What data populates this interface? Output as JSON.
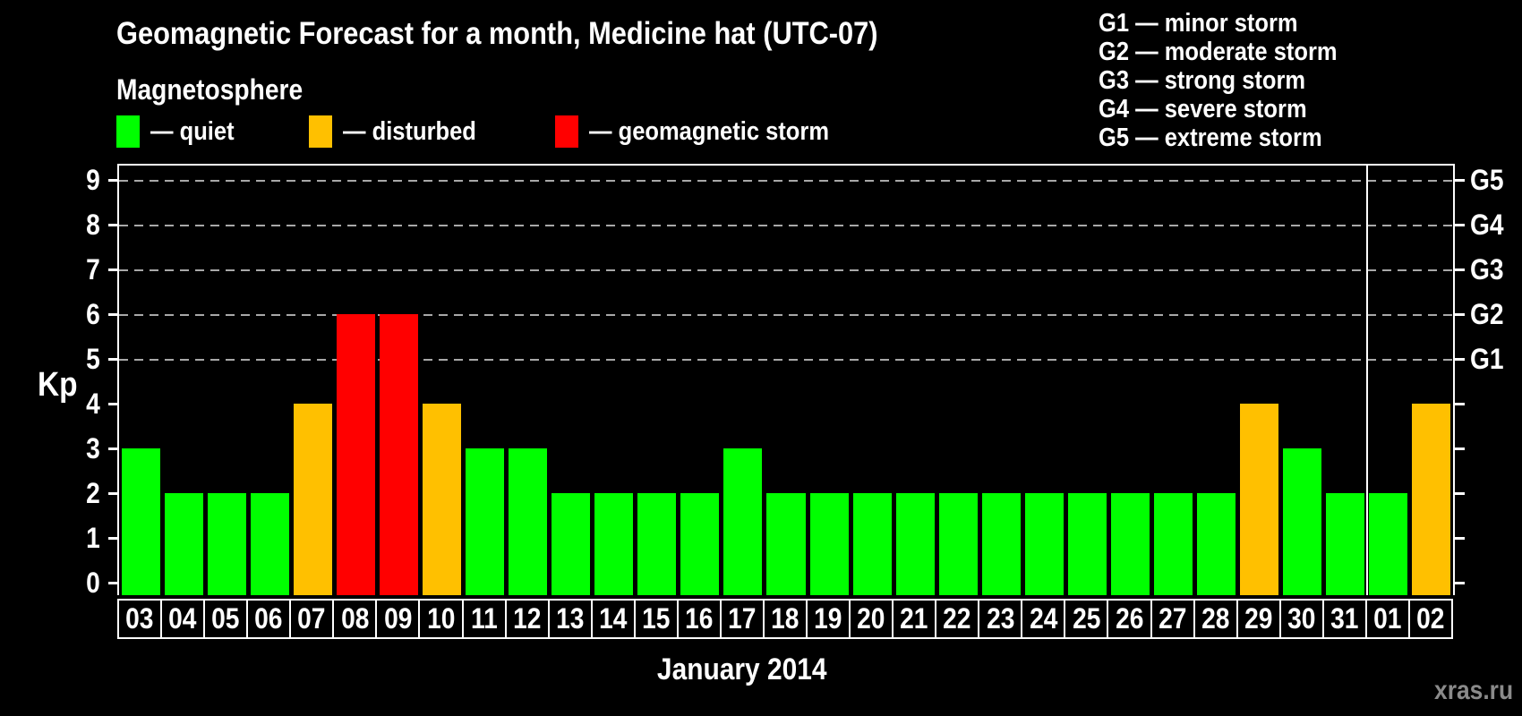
{
  "title": "Geomagnetic Forecast for a month, Medicine hat (UTC-07)",
  "subtitle": "Magnetosphere",
  "watermark": "xras.ru",
  "magnetosphere_legend": [
    {
      "key": "quiet",
      "label": "— quiet",
      "color": "#00ff00"
    },
    {
      "key": "disturbed",
      "label": "— disturbed",
      "color": "#ffc000"
    },
    {
      "key": "storm",
      "label": "— geomagnetic storm",
      "color": "#ff0000"
    }
  ],
  "storm_scale_legend": [
    "G1 — minor storm",
    "G2 — moderate storm",
    "G3 — strong storm",
    "G4 — severe storm",
    "G5 — extreme storm"
  ],
  "chart_data": {
    "type": "bar",
    "title": "Geomagnetic Forecast for a month, Medicine hat (UTC-07)",
    "subtitle": "Magnetosphere",
    "xlabel": "January 2014",
    "ylabel": "Kp",
    "ylim": [
      0,
      9
    ],
    "yticks": [
      0,
      1,
      2,
      3,
      4,
      5,
      6,
      7,
      8,
      9
    ],
    "gridlines_at_kp": [
      5,
      6,
      7,
      8,
      9
    ],
    "grid_style": "dashed horizontal lines at Kp 5-9",
    "legend_position": "top-left",
    "right_axis_labels": [
      {
        "label": "G1",
        "kp": 5
      },
      {
        "label": "G2",
        "kp": 6
      },
      {
        "label": "G3",
        "kp": 7
      },
      {
        "label": "G4",
        "kp": 8
      },
      {
        "label": "G5",
        "kp": 9
      }
    ],
    "categories": [
      "03",
      "04",
      "05",
      "06",
      "07",
      "08",
      "09",
      "10",
      "11",
      "12",
      "13",
      "14",
      "15",
      "16",
      "17",
      "18",
      "19",
      "20",
      "21",
      "22",
      "23",
      "24",
      "25",
      "26",
      "27",
      "28",
      "29",
      "30",
      "31",
      "01",
      "02"
    ],
    "values": [
      3,
      2,
      2,
      2,
      4,
      6,
      6,
      4,
      3,
      3,
      2,
      2,
      2,
      2,
      3,
      2,
      2,
      2,
      2,
      2,
      2,
      2,
      2,
      2,
      2,
      2,
      4,
      3,
      2,
      2,
      4
    ],
    "bar_colors": {
      "quiet": "#00ff00",
      "disturbed": "#ffc000",
      "storm": "#ff0000"
    },
    "color_rule": {
      "disturbed_min_kp": 4,
      "storm_min_kp": 6
    },
    "month_separator_after_category": "31"
  }
}
